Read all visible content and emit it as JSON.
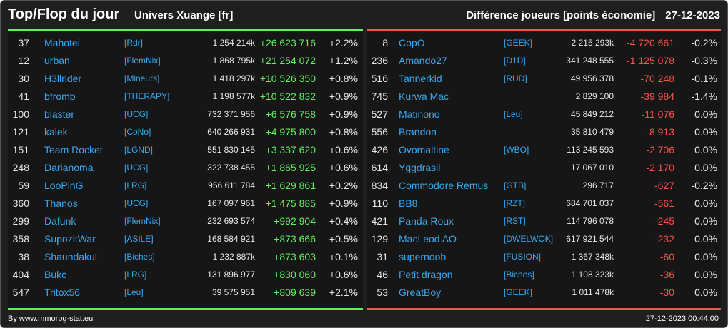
{
  "header": {
    "title": "Top/Flop du jour",
    "subtitle": "Univers Xuange [fr]",
    "metric": "Différence joueurs [points économie]",
    "date": "27-12-2023"
  },
  "colors": {
    "gain": "#5cf25c",
    "loss": "#f2554a",
    "link": "#3aa7ee"
  },
  "top": [
    {
      "rank": "37",
      "name": "Mahotei",
      "guild": "[Rdr]",
      "score": "1 254 214k",
      "diff": "+26 623 716",
      "pct": "+2.2%"
    },
    {
      "rank": "12",
      "name": "urban",
      "guild": "[FlemNix]",
      "score": "1 868 795k",
      "diff": "+21 254 072",
      "pct": "+1.2%"
    },
    {
      "rank": "30",
      "name": "H3llrider",
      "guild": "[Mineurs]",
      "score": "1 418 297k",
      "diff": "+10 526 350",
      "pct": "+0.8%"
    },
    {
      "rank": "41",
      "name": "bfromb",
      "guild": "[THERAPY]",
      "score": "1 198 577k",
      "diff": "+10 522 832",
      "pct": "+0.9%"
    },
    {
      "rank": "100",
      "name": "blaster",
      "guild": "[UCG]",
      "score": "732 371 956",
      "diff": "+6 576 758",
      "pct": "+0.9%"
    },
    {
      "rank": "121",
      "name": "kalek",
      "guild": "[CoNo]",
      "score": "640 266 931",
      "diff": "+4 975 800",
      "pct": "+0.8%"
    },
    {
      "rank": "151",
      "name": "Team Rocket",
      "guild": "[LGND]",
      "score": "551 830 145",
      "diff": "+3 337 620",
      "pct": "+0.6%"
    },
    {
      "rank": "248",
      "name": "Darianoma",
      "guild": "[UCG]",
      "score": "322 738 455",
      "diff": "+1 865 925",
      "pct": "+0.6%"
    },
    {
      "rank": "59",
      "name": "LooPinG",
      "guild": "[LRG]",
      "score": "956 611 784",
      "diff": "+1 629 861",
      "pct": "+0.2%"
    },
    {
      "rank": "360",
      "name": "Thanos",
      "guild": "[UCG]",
      "score": "167 097 961",
      "diff": "+1 475 885",
      "pct": "+0.9%"
    },
    {
      "rank": "299",
      "name": "Dafunk",
      "guild": "[FlemNix]",
      "score": "232 693 574",
      "diff": "+992 904",
      "pct": "+0.4%"
    },
    {
      "rank": "358",
      "name": "SupozitWar",
      "guild": "[ASILE]",
      "score": "168 584 921",
      "diff": "+873 666",
      "pct": "+0.5%"
    },
    {
      "rank": "38",
      "name": "Shaundakul",
      "guild": "[Biches]",
      "score": "1 232 887k",
      "diff": "+873 603",
      "pct": "+0.1%"
    },
    {
      "rank": "404",
      "name": "Bukc",
      "guild": "[LRG]",
      "score": "131 896 977",
      "diff": "+830 060",
      "pct": "+0.6%"
    },
    {
      "rank": "547",
      "name": "Tritox56",
      "guild": "[Leu]",
      "score": "39 575 951",
      "diff": "+809 639",
      "pct": "+2.1%"
    }
  ],
  "flop": [
    {
      "rank": "8",
      "name": "CopO",
      "guild": "[GEEK]",
      "score": "2 215 293k",
      "diff": "-4 720 661",
      "pct": "-0.2%"
    },
    {
      "rank": "236",
      "name": "Amando27",
      "guild": "[D1D]",
      "score": "341 248 555",
      "diff": "-1 125 078",
      "pct": "-0.3%"
    },
    {
      "rank": "516",
      "name": "Tannerkid",
      "guild": "[RUD]",
      "score": "49 956 378",
      "diff": "-70 248",
      "pct": "-0.1%"
    },
    {
      "rank": "745",
      "name": "Kurwa Mac",
      "guild": "",
      "score": "2 829 100",
      "diff": "-39 984",
      "pct": "-1.4%"
    },
    {
      "rank": "527",
      "name": "Matinono",
      "guild": "[Leu]",
      "score": "45 849 212",
      "diff": "-11 076",
      "pct": "0.0%"
    },
    {
      "rank": "556",
      "name": "Brandon",
      "guild": "",
      "score": "35 810 479",
      "diff": "-8 913",
      "pct": "0.0%"
    },
    {
      "rank": "426",
      "name": "Ovomaltine",
      "guild": "[WBO]",
      "score": "113 245 593",
      "diff": "-2 706",
      "pct": "0.0%"
    },
    {
      "rank": "614",
      "name": "Yggdrasil",
      "guild": "",
      "score": "17 067 010",
      "diff": "-2 170",
      "pct": "0.0%"
    },
    {
      "rank": "834",
      "name": "Commodore Remus",
      "guild": "[GTB]",
      "score": "296 717",
      "diff": "-627",
      "pct": "-0.2%"
    },
    {
      "rank": "110",
      "name": "BB8",
      "guild": "[RZT]",
      "score": "684 701 037",
      "diff": "-561",
      "pct": "0.0%"
    },
    {
      "rank": "421",
      "name": "Panda Roux",
      "guild": "[RST]",
      "score": "114 796 078",
      "diff": "-245",
      "pct": "0.0%"
    },
    {
      "rank": "129",
      "name": "MacLeod AO",
      "guild": "[DWELWOK]",
      "score": "617 921 544",
      "diff": "-232",
      "pct": "0.0%"
    },
    {
      "rank": "31",
      "name": "supernoob",
      "guild": "[FUSION]",
      "score": "1 367 348k",
      "diff": "-60",
      "pct": "0.0%"
    },
    {
      "rank": "46",
      "name": "Petit dragon",
      "guild": "[Biches]",
      "score": "1 108 323k",
      "diff": "-36",
      "pct": "0.0%"
    },
    {
      "rank": "53",
      "name": "GreatBoy",
      "guild": "[GEEK]",
      "score": "1 011 478k",
      "diff": "-30",
      "pct": "0.0%"
    }
  ],
  "footer": {
    "credit": "By www.mmorpg-stat.eu",
    "timestamp": "27-12-2023 00:44:00"
  }
}
